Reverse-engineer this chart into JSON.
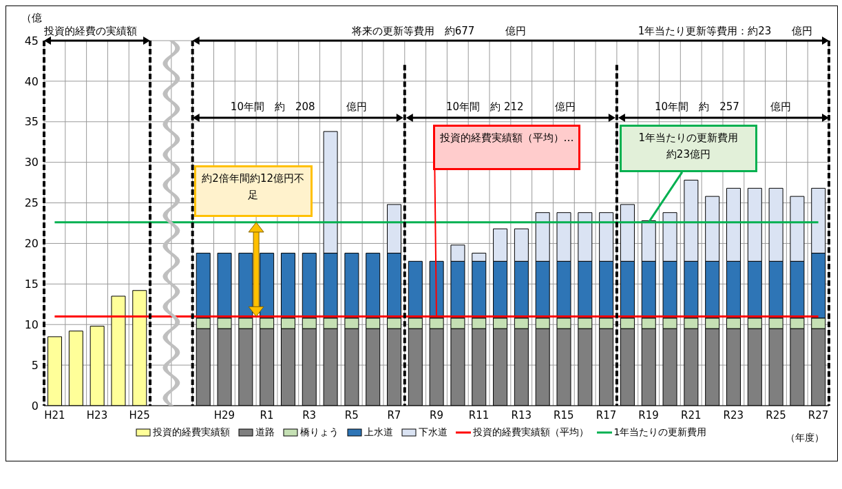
{
  "chart_data": {
    "type": "bar",
    "stacked": true,
    "xlabel": "（年度）",
    "ylabel": "（億",
    "categories": [
      "H21",
      null,
      "H23",
      null,
      "H25",
      null,
      null,
      null,
      "H29",
      null,
      "R1",
      null,
      "R3",
      null,
      "R5",
      null,
      "R7",
      null,
      "R9",
      null,
      "R11",
      null,
      "R13",
      null,
      "R15",
      null,
      "R17",
      null,
      "R19",
      null,
      "R21",
      null,
      "R23",
      null,
      "R25",
      null,
      "R27"
    ],
    "series": [
      {
        "name": "投資的経費実績額",
        "color": "#ffff99",
        "values": [
          8.5,
          9.2,
          9.8,
          13.5,
          14.2,
          null,
          null,
          null,
          null,
          null,
          null,
          null,
          null,
          null,
          null,
          null,
          null,
          null,
          null,
          null,
          null,
          null,
          null,
          null,
          null,
          null,
          null,
          null,
          null,
          null,
          null,
          null,
          null,
          null,
          null,
          null,
          null
        ]
      },
      {
        "name": "道路",
        "color": "#7f7f7f",
        "values": [
          null,
          null,
          null,
          null,
          null,
          null,
          null,
          9.5,
          9.5,
          9.5,
          9.5,
          9.5,
          9.5,
          9.5,
          9.5,
          9.5,
          9.5,
          9.5,
          9.5,
          9.5,
          9.5,
          9.5,
          9.5,
          9.5,
          9.5,
          9.5,
          9.5,
          9.5,
          9.5,
          9.5,
          9.5,
          9.5,
          9.5,
          9.5,
          9.5,
          9.5,
          9.5
        ]
      },
      {
        "name": "橋りょう",
        "color": "#c5e0b4",
        "values": [
          null,
          null,
          null,
          null,
          null,
          null,
          null,
          1.3,
          1.3,
          1.3,
          1.3,
          1.3,
          1.3,
          1.3,
          1.3,
          1.3,
          1.3,
          1.3,
          1.3,
          1.3,
          1.3,
          1.3,
          1.3,
          1.3,
          1.3,
          1.3,
          1.3,
          1.3,
          1.3,
          1.3,
          1.3,
          1.3,
          1.3,
          1.3,
          1.3,
          1.3,
          1.3
        ]
      },
      {
        "name": "上水道",
        "color": "#2e75b6",
        "values": [
          null,
          null,
          null,
          null,
          null,
          null,
          null,
          8.0,
          8.0,
          8.0,
          8.0,
          8.0,
          8.0,
          8.0,
          8.0,
          8.0,
          8.0,
          7.0,
          7.0,
          7.0,
          7.0,
          7.0,
          7.0,
          7.0,
          7.0,
          7.0,
          7.0,
          7.0,
          7.0,
          7.0,
          7.0,
          7.0,
          7.0,
          7.0,
          7.0,
          7.0,
          8.0
        ]
      },
      {
        "name": "下水道",
        "color": "#dae3f3",
        "values": [
          null,
          null,
          null,
          null,
          null,
          null,
          null,
          null,
          null,
          null,
          null,
          null,
          null,
          15.0,
          null,
          null,
          6.0,
          null,
          null,
          2.0,
          1.0,
          4.0,
          4.0,
          6.0,
          6.0,
          6.0,
          6.0,
          7.0,
          5.0,
          6.0,
          10.0,
          8.0,
          9.0,
          9.0,
          9.0,
          8.0,
          8.0
        ]
      },
      {
        "type": "line",
        "name": "投資的経費実績額（平均）",
        "color": "#ff0000",
        "values": [
          11,
          11,
          11,
          11,
          11,
          11,
          11,
          11,
          11,
          11,
          11,
          11,
          11,
          11,
          11,
          11,
          11,
          11,
          11,
          11,
          11,
          11,
          11,
          11,
          11,
          11,
          11,
          11,
          11,
          11,
          11,
          11,
          11,
          11,
          11,
          11,
          11
        ]
      },
      {
        "type": "line",
        "name": "1年当たりの更新費用",
        "color": "#00b050",
        "values": [
          22.6,
          22.6,
          22.6,
          22.6,
          22.6,
          22.6,
          22.6,
          22.6,
          22.6,
          22.6,
          22.6,
          22.6,
          22.6,
          22.6,
          22.6,
          22.6,
          22.6,
          22.6,
          22.6,
          22.6,
          22.6,
          22.6,
          22.6,
          22.6,
          22.6,
          22.6,
          22.6,
          22.6,
          22.6,
          22.6,
          22.6,
          22.6,
          22.6,
          22.6,
          22.6,
          22.6,
          22.6
        ]
      }
    ],
    "ylim": [
      0,
      45
    ],
    "yticks": [
      0,
      5,
      10,
      15,
      20,
      25,
      30,
      35,
      40,
      45
    ],
    "grid": true,
    "legend": "bottom",
    "marker": "none",
    "annotations": [
      "投資的経費の実績額",
      "将来の更新等費用　約677　　　億円",
      "1年当たり更新等費用：約23　　億円",
      "10年間　約　208　　　億円",
      "10年間　約 212　　　億円",
      "10年間　約　257　　　億円",
      "約2倍年間約12億円不足",
      {
        "text": "投資的経費実績額（平均）…",
        "x": "R9",
        "y": 11
      },
      {
        "text": "1年当たりの更新費用約23億円",
        "x": "R19",
        "y": 22.6
      }
    ]
  }
}
